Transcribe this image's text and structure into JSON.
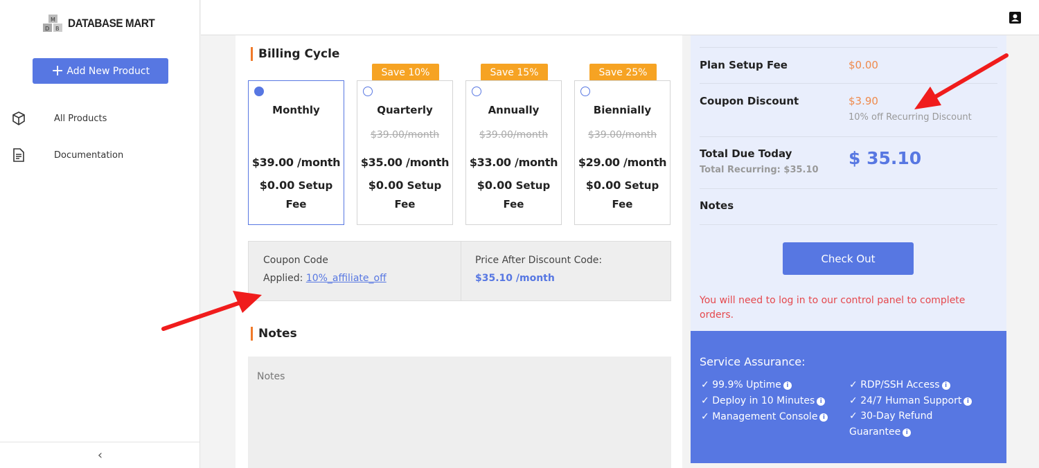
{
  "brand": {
    "name": "DATABASE MART",
    "logo_letters": "MDB"
  },
  "sidebar": {
    "add_button": "Add New Product",
    "items": [
      {
        "label": "All Products",
        "icon": "box-icon"
      },
      {
        "label": "Documentation",
        "icon": "document-icon"
      }
    ],
    "collapse_icon": "chevron-left-icon"
  },
  "topbar": {
    "user_icon": "user-icon"
  },
  "billing": {
    "heading": "Billing Cycle",
    "options": [
      {
        "name": "Monthly",
        "badge": "",
        "original": "",
        "price": "$39.00 /month",
        "setup_amount": "$0.00",
        "setup_label": "Setup Fee",
        "selected": true
      },
      {
        "name": "Quarterly",
        "badge": "Save 10%",
        "original": "$39.00/month",
        "price": "$35.00 /month",
        "setup_amount": "$0.00",
        "setup_label": "Setup Fee",
        "selected": false
      },
      {
        "name": "Annually",
        "badge": "Save 15%",
        "original": "$39.00/month",
        "price": "$33.00 /month",
        "setup_amount": "$0.00",
        "setup_label": "Setup Fee",
        "selected": false
      },
      {
        "name": "Biennially",
        "badge": "Save 25%",
        "original": "$39.00/month",
        "price": "$29.00 /month",
        "setup_amount": "$0.00",
        "setup_label": "Setup Fee",
        "selected": false
      }
    ]
  },
  "coupon": {
    "label": "Coupon Code",
    "applied_label": "Applied:",
    "code": "10%_affiliate_off",
    "after_label": "Price After Discount Code:",
    "after_price": "$35.10 /month"
  },
  "notes": {
    "heading": "Notes",
    "placeholder": "Notes"
  },
  "summary": {
    "setup_label": "Plan Setup Fee",
    "setup_value": "$0.00",
    "discount_label": "Coupon Discount",
    "discount_value": "$3.90",
    "discount_note": "10% off Recurring Discount",
    "total_label": "Total Due Today",
    "recurring": "Total Recurring: $35.10",
    "total_value": "$ 35.10",
    "notes_label": "Notes",
    "checkout": "Check Out",
    "warning": "You will need to log in to our control panel to complete orders."
  },
  "assurance": {
    "title": "Service Assurance:",
    "items": [
      "99.9% Uptime",
      "Deploy in 10 Minutes",
      "Management Console",
      "RDP/SSH Access",
      "24/7 Human Support",
      "30-Day Refund Guarantee"
    ]
  },
  "colors": {
    "accent": "#5777e2",
    "orange": "#f6a323",
    "price_orange": "#ef8a4c",
    "warning": "#e5484d"
  }
}
